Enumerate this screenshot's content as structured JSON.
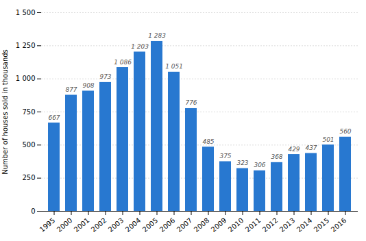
{
  "chart_data": {
    "type": "bar",
    "categories": [
      "1995",
      "2000",
      "2001",
      "2002",
      "2003",
      "2004",
      "2005",
      "2006",
      "2007",
      "2008",
      "2009",
      "2010",
      "2011",
      "2012",
      "2013",
      "2014",
      "2015",
      "2016"
    ],
    "values": [
      667,
      877,
      908,
      973,
      1086,
      1203,
      1283,
      1051,
      776,
      485,
      375,
      323,
      306,
      368,
      429,
      437,
      501,
      560
    ],
    "value_labels": [
      "667",
      "877",
      "908",
      "973",
      "1 086",
      "1 203",
      "1 283",
      "1 051",
      "776",
      "485",
      "375",
      "323",
      "306",
      "368",
      "429",
      "437",
      "501",
      "560"
    ],
    "data_labels": true,
    "color": "#2878d0",
    "ylabel": "Number of houses sold in thousands",
    "ylim": [
      0,
      1500
    ],
    "yticks": [
      0,
      250,
      500,
      750,
      {
        "value": 1000,
        "label": "1 000"
      },
      {
        "value": 1250,
        "label": "1 250"
      },
      {
        "value": 1500,
        "label": "1 500"
      }
    ],
    "grid": true
  }
}
